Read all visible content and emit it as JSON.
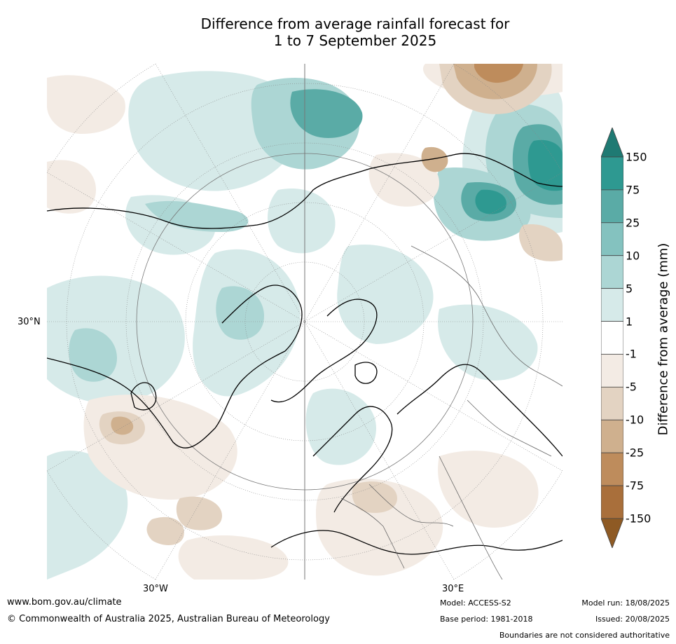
{
  "title_line1": "Difference from average rainfall forecast for",
  "title_line2": "1 to 7 September 2025",
  "axis_labels": {
    "lat_30n": "30°N",
    "lon_30w": "30°W",
    "lon_30e": "30°E"
  },
  "colorbar": {
    "title": "Difference from average (mm)",
    "ticks": [
      "150",
      "75",
      "25",
      "10",
      "5",
      "1",
      "-1",
      "-5",
      "-10",
      "-25",
      "-75",
      "-150"
    ],
    "colors": [
      "#1f7a73",
      "#2e9991",
      "#5aaba6",
      "#84c2bf",
      "#acd6d4",
      "#d6eae9",
      "#ffffff",
      "#f3ebe4",
      "#e3d3c2",
      "#cfb08e",
      "#be8c5c",
      "#a96f3b",
      "#8e5a24"
    ]
  },
  "footer": {
    "website": "www.bom.gov.au/climate",
    "copyright": "© Commonwealth of Australia 2025, Australian Bureau of Meteorology",
    "model": "Model: ACCESS-S2",
    "base_period": "Base period: 1981-2018",
    "model_run": "Model run: 18/08/2025",
    "issued": "Issued: 20/08/2025",
    "disclaimer": "Boundaries are not considered authoritative"
  }
}
